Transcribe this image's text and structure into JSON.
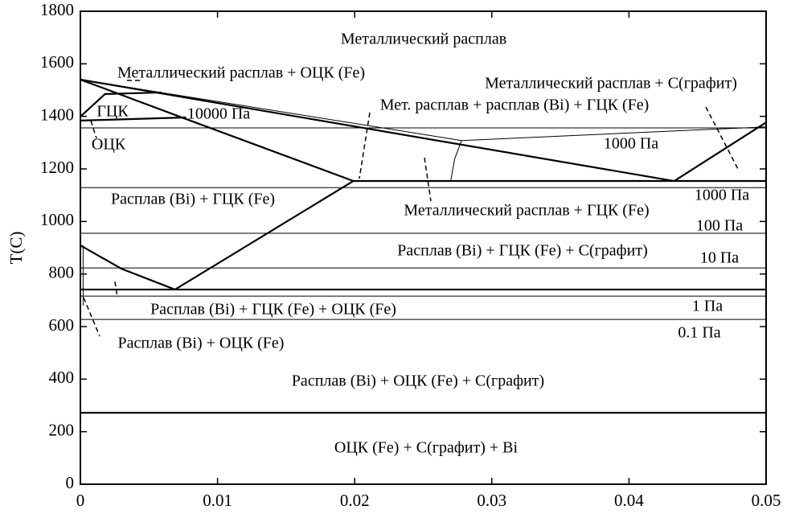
{
  "chart_data": {
    "type": "line",
    "color": "#000000",
    "ylabel": "T(C)",
    "xlim": [
      0,
      0.05
    ],
    "xticks": [
      0,
      0.01,
      0.02,
      0.03,
      0.04,
      0.05
    ],
    "ylim": [
      0,
      1800
    ],
    "yticks": [
      0,
      200,
      400,
      600,
      800,
      1000,
      1200,
      1400,
      1600,
      1800
    ],
    "lines": [
      {
        "width": "thick",
        "x": [
          0,
          0.0433
        ],
        "y": [
          1540,
          1154
        ]
      },
      {
        "width": "thick",
        "x": [
          0.0433,
          0.05
        ],
        "y": [
          1154,
          1377
        ]
      },
      {
        "width": "thick",
        "x": [
          0.0199,
          0.05
        ],
        "y": [
          1154,
          1154
        ]
      },
      {
        "width": "thick",
        "x": [
          0,
          0.0077,
          0.0199
        ],
        "y": [
          1540,
          1390,
          1154
        ]
      },
      {
        "width": "thick",
        "x": [
          0.0069,
          0.0199
        ],
        "y": [
          741,
          1154
        ]
      },
      {
        "width": "thick",
        "x": [
          0,
          0.003,
          0.0069
        ],
        "y": [
          909,
          820,
          741
        ]
      },
      {
        "width": "thin",
        "x": [
          0,
          0.0278,
          0.05
        ],
        "y": [
          1540,
          1308,
          1360
        ]
      },
      {
        "width": "thick",
        "x": [
          0,
          0.0077
        ],
        "y": [
          1384,
          1396
        ]
      },
      {
        "width": "thick",
        "x": [
          0,
          0.0018,
          0.0059
        ],
        "y": [
          1399,
          1485,
          1491
        ]
      },
      {
        "width": "thin",
        "x": [
          0,
          0.05
        ],
        "y": [
          1356,
          1356
        ]
      },
      {
        "width": "thin",
        "x": [
          0,
          0.05
        ],
        "y": [
          1129,
          1129
        ]
      },
      {
        "width": "thin",
        "x": [
          0,
          0.05
        ],
        "y": [
          955,
          955
        ]
      },
      {
        "width": "thin",
        "x": [
          0,
          0.05
        ],
        "y": [
          823,
          823
        ]
      },
      {
        "width": "thick",
        "x": [
          0,
          0.05
        ],
        "y": [
          741,
          741
        ]
      },
      {
        "width": "thin",
        "x": [
          0,
          0.05
        ],
        "y": [
          716,
          716
        ]
      },
      {
        "width": "thin",
        "x": [
          0,
          0.05
        ],
        "y": [
          627,
          627
        ]
      },
      {
        "width": "thick",
        "x": [
          0,
          0.05
        ],
        "y": [
          272,
          272
        ]
      },
      {
        "width": "thin",
        "x": [
          0.027,
          0.0273,
          0.0278
        ],
        "y": [
          1154,
          1240,
          1308
        ]
      },
      {
        "width": "thin",
        "x": [
          0.0002,
          0.0002
        ],
        "y": [
          909,
          680
        ]
      }
    ],
    "annotations": [
      "Металлический расплав",
      "Металлический расплав + ОЦК (Fe)",
      "Металлический расплав + C(графит)",
      "Мет. расплав + расплав (Bi) + ГЦК (Fe)",
      "ГЦК",
      "10000 Па",
      "ОЦК",
      "1000 Па",
      "Расплав (Bi) + ГЦК (Fe)",
      "1000 Па",
      "Металлический расплав + ГЦК (Fe)",
      "100 Па",
      "Расплав (Bi) + ГЦК (Fe) + C(графит)",
      "10 Па",
      "Расплав (Bi) + ГЦК (Fe) + ОЦК (Fe)",
      "1 Па",
      "0.1 Па",
      "Расплав (Bi) + ОЦК (Fe)",
      "Расплав (Bi) + ОЦК (Fe) + C(графит)",
      "ОЦК (Fe) + C(графит) + Bi"
    ]
  }
}
